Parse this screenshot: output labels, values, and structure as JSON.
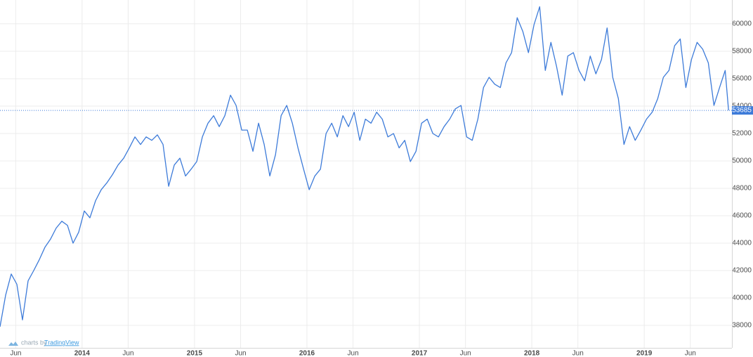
{
  "chart_data": {
    "type": "line",
    "color": "#3d7bd9",
    "grid": true,
    "x": [
      2013.27,
      2013.32,
      2013.37,
      2013.42,
      2013.47,
      2013.52,
      2013.57,
      2013.62,
      2013.67,
      2013.72,
      2013.77,
      2013.82,
      2013.87,
      2013.92,
      2013.97,
      2014.02,
      2014.07,
      2014.12,
      2014.17,
      2014.22,
      2014.27,
      2014.32,
      2014.37,
      2014.42,
      2014.47,
      2014.52,
      2014.57,
      2014.62,
      2014.67,
      2014.72,
      2014.77,
      2014.82,
      2014.87,
      2014.92,
      2014.97,
      2015.02,
      2015.07,
      2015.12,
      2015.17,
      2015.22,
      2015.27,
      2015.32,
      2015.37,
      2015.42,
      2015.47,
      2015.52,
      2015.57,
      2015.62,
      2015.67,
      2015.72,
      2015.77,
      2015.82,
      2015.87,
      2015.92,
      2015.97,
      2016.02,
      2016.07,
      2016.12,
      2016.17,
      2016.22,
      2016.27,
      2016.32,
      2016.37,
      2016.42,
      2016.47,
      2016.52,
      2016.57,
      2016.62,
      2016.67,
      2016.72,
      2016.77,
      2016.82,
      2016.87,
      2016.92,
      2016.97,
      2017.02,
      2017.07,
      2017.12,
      2017.17,
      2017.22,
      2017.27,
      2017.32,
      2017.37,
      2017.42,
      2017.47,
      2017.52,
      2017.57,
      2017.62,
      2017.67,
      2017.72,
      2017.77,
      2017.82,
      2017.87,
      2017.92,
      2017.97,
      2018.02,
      2018.07,
      2018.12,
      2018.17,
      2018.22,
      2018.27,
      2018.32,
      2018.37,
      2018.42,
      2018.47,
      2018.52,
      2018.57,
      2018.62,
      2018.67,
      2018.72,
      2018.77,
      2018.82,
      2018.87,
      2018.92,
      2018.97,
      2019.02,
      2019.07,
      2019.12,
      2019.17,
      2019.22,
      2019.27,
      2019.32,
      2019.37,
      2019.42,
      2019.47,
      2019.52,
      2019.57,
      2019.62,
      2019.67,
      2019.72,
      2019.75
    ],
    "values": [
      37900,
      40200,
      41750,
      41000,
      38400,
      41250,
      42000,
      42800,
      43700,
      44300,
      45100,
      45600,
      45300,
      44000,
      44800,
      46350,
      45850,
      47100,
      47900,
      48400,
      49000,
      49700,
      50200,
      50950,
      51750,
      51200,
      51750,
      51500,
      51900,
      51200,
      48150,
      49700,
      50200,
      48900,
      49400,
      49950,
      51750,
      52750,
      53300,
      52500,
      53300,
      54800,
      54050,
      52250,
      52250,
      50700,
      52750,
      51200,
      48900,
      50450,
      53300,
      54050,
      52750,
      50950,
      49400,
      47900,
      48900,
      49400,
      52000,
      52750,
      51750,
      53300,
      52500,
      53550,
      51500,
      53050,
      52750,
      53550,
      53050,
      51750,
      52000,
      50950,
      51500,
      49950,
      50700,
      52750,
      53050,
      52000,
      51750,
      52500,
      53050,
      53800,
      54050,
      51750,
      51500,
      53050,
      55350,
      56100,
      55600,
      55350,
      57150,
      57900,
      60450,
      59450,
      57900,
      59950,
      61250,
      56600,
      58650,
      56900,
      54800,
      57650,
      57900,
      56600,
      55850,
      57650,
      56350,
      57400,
      59700,
      56100,
      54550,
      51200,
      52500,
      51500,
      52250,
      53050,
      53550,
      54550,
      56100,
      56600,
      58400,
      58900,
      55350,
      57400,
      58650,
      58150,
      57150,
      54050,
      55350,
      56600,
      53685
    ],
    "xlim": [
      2013.27,
      2019.78
    ],
    "xticks": [
      {
        "value": 2013.41,
        "label": "Jun"
      },
      2014,
      {
        "value": 2014.41,
        "label": "Jun"
      },
      2015,
      {
        "value": 2015.41,
        "label": "Jun"
      },
      2016,
      {
        "value": 2016.41,
        "label": "Jun"
      },
      2017,
      {
        "value": 2017.41,
        "label": "Jun"
      },
      2018,
      {
        "value": 2018.41,
        "label": "Jun"
      },
      2019,
      {
        "value": 2019.41,
        "label": "Jun"
      }
    ],
    "ylim": [
      36360,
      61740
    ],
    "yticks": [
      38000,
      40000,
      42000,
      44000,
      46000,
      48000,
      50000,
      52000,
      54000,
      56000,
      58000,
      60000
    ],
    "credit": {
      "prefix": "charts by",
      "brand": "TradingView"
    }
  }
}
